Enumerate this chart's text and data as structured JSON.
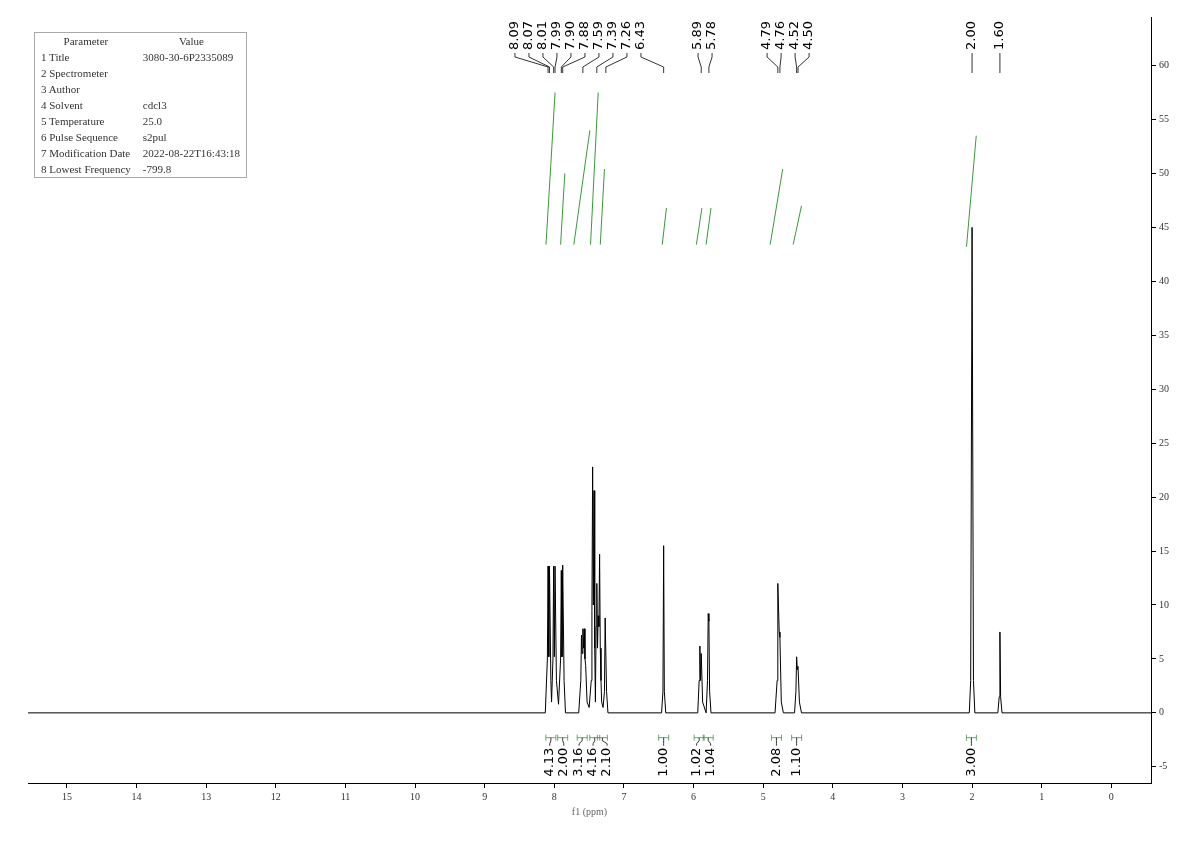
{
  "chart_data": {
    "type": "line",
    "xlabel": "f1 (ppm)",
    "xlim": [
      15.56,
      -0.57
    ],
    "xticks": [
      15,
      14,
      13,
      12,
      11,
      10,
      9,
      8,
      7,
      6,
      5,
      4,
      3,
      2,
      1,
      0
    ],
    "ylim": [
      -6.5,
      64.5
    ],
    "yticks": [
      -5,
      0,
      5,
      10,
      15,
      20,
      25,
      30,
      35,
      40,
      45,
      50,
      55,
      60
    ],
    "legend": false,
    "grid": false,
    "series": [
      {
        "color": "#000000",
        "x": [
          15.56,
          8.13,
          8.1,
          8.09,
          8.08,
          8.07,
          8.05,
          8.04,
          8.02,
          8.01,
          8.0,
          7.99,
          7.97,
          7.94,
          7.91,
          7.9,
          7.89,
          7.88,
          7.86,
          7.84,
          7.65,
          7.62,
          7.61,
          7.6,
          7.59,
          7.58,
          7.57,
          7.56,
          7.55,
          7.53,
          7.5,
          7.47,
          7.46,
          7.45,
          7.44,
          7.43,
          7.42,
          7.41,
          7.4,
          7.39,
          7.38,
          7.37,
          7.36,
          7.35,
          7.34,
          7.33,
          7.32,
          7.3,
          7.28,
          7.27,
          7.25,
          7.23,
          6.46,
          6.44,
          6.43,
          6.42,
          6.4,
          5.94,
          5.92,
          5.91,
          5.9,
          5.89,
          5.87,
          5.82,
          5.8,
          5.79,
          5.78,
          5.77,
          5.75,
          4.83,
          4.8,
          4.79,
          4.77,
          4.76,
          4.74,
          4.71,
          4.55,
          4.53,
          4.52,
          4.51,
          4.5,
          4.48,
          4.45,
          2.04,
          2.02,
          2.0,
          1.98,
          1.96,
          1.63,
          1.61,
          1.6,
          1.59,
          1.57,
          -0.57
        ],
        "values": [
          0,
          0,
          5,
          13.6,
          5.2,
          13.6,
          3,
          1,
          5,
          13.6,
          5.2,
          13.6,
          3,
          0.8,
          5,
          13.2,
          5.2,
          13.7,
          3,
          0,
          0,
          3,
          7.2,
          5.5,
          7.8,
          6,
          7.8,
          5,
          4.4,
          1,
          0.5,
          3,
          9.5,
          22.8,
          10,
          20.6,
          6,
          1,
          8,
          12,
          6,
          9,
          8,
          14.7,
          6,
          3,
          1,
          0.5,
          2,
          8.8,
          2,
          0,
          0,
          2,
          15.5,
          2,
          0,
          0,
          3,
          6.2,
          3,
          5.5,
          1,
          0,
          3,
          9.2,
          8.5,
          2,
          0,
          0,
          3,
          12,
          7.5,
          7,
          1,
          0,
          0,
          2,
          5.2,
          4,
          4.3,
          1,
          0,
          0,
          3,
          45,
          3,
          0,
          0,
          1.5,
          7.5,
          1.5,
          0,
          0
        ]
      },
      {
        "color": "#3a9a3a",
        "x": [
          8.12,
          8.05,
          7.99
        ],
        "values": [
          43.4,
          50.9,
          57.5
        ]
      },
      {
        "color": "#3a9a3a",
        "x": [
          7.91,
          7.85
        ],
        "values": [
          43.4,
          50
        ]
      },
      {
        "color": "#3a9a3a",
        "x": [
          7.72,
          7.49
        ],
        "values": [
          43.4,
          54
        ]
      },
      {
        "color": "#3a9a3a",
        "x": [
          7.48,
          7.37
        ],
        "values": [
          43.4,
          57.5
        ]
      },
      {
        "color": "#3a9a3a",
        "x": [
          7.34,
          7.28
        ],
        "values": [
          43.4,
          50.4
        ]
      },
      {
        "color": "#3a9a3a",
        "x": [
          6.45,
          6.39
        ],
        "values": [
          43.4,
          46.8
        ]
      },
      {
        "color": "#3a9a3a",
        "x": [
          5.96,
          5.88
        ],
        "values": [
          43.4,
          46.8
        ]
      },
      {
        "color": "#3a9a3a",
        "x": [
          5.82,
          5.75
        ],
        "values": [
          43.4,
          46.8
        ]
      },
      {
        "color": "#3a9a3a",
        "x": [
          4.9,
          4.72
        ],
        "values": [
          43.4,
          50.4
        ]
      },
      {
        "color": "#3a9a3a",
        "x": [
          4.57,
          4.45
        ],
        "values": [
          43.4,
          47
        ]
      },
      {
        "color": "#3a9a3a",
        "x": [
          2.08,
          1.94
        ],
        "values": [
          43.2,
          53.5
        ]
      }
    ],
    "annotations": [
      "Parameter",
      "Value",
      "1 Title",
      "3080-30-6P2335089",
      "2 Spectrometer",
      null,
      "3 Author",
      null,
      "4 Solvent",
      "cdcl3",
      "5 Temperature",
      "25.0",
      "6 Pulse Sequence",
      "s2pul",
      "7 Modification Date",
      "2022-08-22T16:43:18",
      "8 Lowest Frequency",
      "-799.8",
      {
        "text": "8.09",
        "x": 8.09
      },
      {
        "text": "8.07",
        "x": 8.07
      },
      {
        "text": "8.01",
        "x": 8.01
      },
      {
        "text": "7.99",
        "x": 7.99
      },
      {
        "text": "7.90",
        "x": 7.9
      },
      {
        "text": "7.88",
        "x": 7.88
      },
      {
        "text": "7.59",
        "x": 7.59
      },
      {
        "text": "7.39",
        "x": 7.39
      },
      {
        "text": "7.26",
        "x": 7.26
      },
      {
        "text": "6.43",
        "x": 6.43
      },
      {
        "text": "5.89",
        "x": 5.89
      },
      {
        "text": "5.78",
        "x": 5.78
      },
      {
        "text": "4.79",
        "x": 4.79
      },
      {
        "text": "4.76",
        "x": 4.76
      },
      {
        "text": "4.52",
        "x": 4.52
      },
      {
        "text": "4.50",
        "x": 4.5
      },
      {
        "text": "2.00",
        "x": 2.0
      },
      {
        "text": "1.60",
        "x": 1.6
      },
      {
        "text": "4.13",
        "x": 8.05,
        "y": -2.3
      },
      {
        "text": "2.00",
        "x": 7.88,
        "y": -2.3
      },
      {
        "text": "3.16",
        "x": 7.6,
        "y": -2.3
      },
      {
        "text": "4.16",
        "x": 7.42,
        "y": -2.3
      },
      {
        "text": "2.10",
        "x": 7.31,
        "y": -2.3
      },
      {
        "text": "1.00",
        "x": 6.43,
        "y": -2.3
      },
      {
        "text": "1.02",
        "x": 5.92,
        "y": -2.3
      },
      {
        "text": "1.04",
        "x": 5.79,
        "y": -2.3
      },
      {
        "text": "2.08",
        "x": 4.81,
        "y": -2.3
      },
      {
        "text": "1.10",
        "x": 4.52,
        "y": -2.3
      },
      {
        "text": "3.00",
        "x": 2.01,
        "y": -2.3
      }
    ]
  }
}
